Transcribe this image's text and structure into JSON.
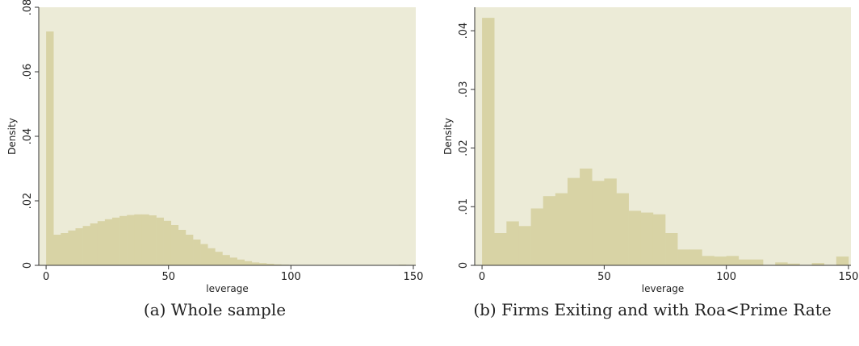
{
  "chart_data": [
    {
      "type": "bar",
      "caption": "(a) Whole sample",
      "xlabel": "leverage",
      "ylabel": "Density",
      "xlim": [
        -3,
        151
      ],
      "ylim": [
        0,
        0.08
      ],
      "xticks": [
        0,
        50,
        100,
        150
      ],
      "yticks": [
        0,
        0.02,
        0.04,
        0.06,
        0.08
      ],
      "ytick_labels": [
        "0",
        ".02",
        ".04",
        ".06",
        ".08"
      ],
      "bin_width": 3,
      "bin_start": 0,
      "values": [
        0.0725,
        0.0095,
        0.01,
        0.0108,
        0.0115,
        0.0122,
        0.013,
        0.0137,
        0.0143,
        0.0148,
        0.0153,
        0.0156,
        0.0158,
        0.0158,
        0.0155,
        0.0148,
        0.0138,
        0.0125,
        0.011,
        0.0095,
        0.008,
        0.0066,
        0.0053,
        0.0042,
        0.0032,
        0.0024,
        0.0018,
        0.0013,
        0.0009,
        0.0007,
        0.0005,
        0.0003,
        0.0002,
        0.0001,
        0.0001,
        5e-05,
        5e-05,
        3e-05,
        2e-05,
        2e-05,
        1e-05,
        1e-05,
        1e-05,
        1e-05,
        1e-05,
        1e-05,
        1e-05,
        1e-05,
        0.0002,
        0.0001
      ],
      "bar_color": "#d8d3a5",
      "plot_background": "#ecebd7"
    },
    {
      "type": "bar",
      "caption": "(b) Firms Exiting and with Roa<Prime Rate",
      "xlabel": "leverage",
      "ylabel": "Density",
      "xlim": [
        -3,
        151
      ],
      "ylim": [
        0,
        0.044
      ],
      "xticks": [
        0,
        50,
        100,
        150
      ],
      "yticks": [
        0,
        0.01,
        0.02,
        0.03,
        0.04
      ],
      "ytick_labels": [
        "0",
        ".01",
        ".02",
        ".03",
        ".04"
      ],
      "bin_width": 5,
      "bin_start": 0,
      "values": [
        0.0422,
        0.0055,
        0.0075,
        0.0067,
        0.0097,
        0.0118,
        0.0123,
        0.0149,
        0.0165,
        0.0144,
        0.0148,
        0.0123,
        0.0093,
        0.009,
        0.0087,
        0.0055,
        0.0027,
        0.0027,
        0.0016,
        0.0015,
        0.0016,
        0.001,
        0.001,
        0.0,
        0.0005,
        0.0003,
        0.0,
        0.0004,
        0.0,
        0.0015
      ],
      "bar_color": "#d8d3a5",
      "plot_background": "#ecebd7"
    }
  ]
}
